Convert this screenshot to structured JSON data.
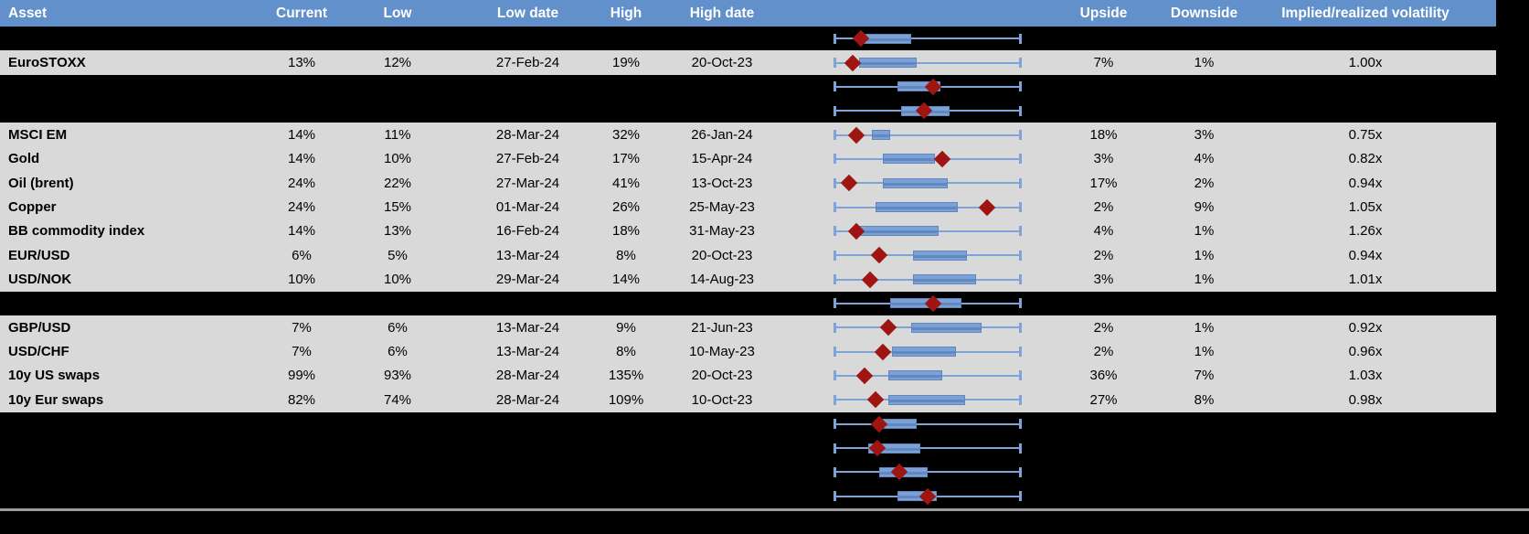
{
  "header": {
    "columns": [
      "Asset",
      "Current",
      "Low",
      "Low date",
      "High",
      "High date",
      "",
      "Upside",
      "Downside",
      "Implied/realized volatility",
      ""
    ]
  },
  "colors": {
    "header_bg": "#6190cb",
    "header_text": "#ffffff",
    "row_bg": "#d9d9d9",
    "hidden_row_bg": "#000000",
    "whisker_blue": "#7fa3d6",
    "box_fill_blue": "#7ba2d6",
    "box_stripe_blue": "#6288bf",
    "marker_red": "#9e1511",
    "bottom_rule_gray": "#9c9c9c"
  },
  "chart_data": {
    "type": "table",
    "legend_position": "none",
    "boxplot_scale": "normalized 0-1 across full min-max whisker span; marker = current value diamond",
    "rows": [
      {
        "hidden": true,
        "boxplot": {
          "whisker": [
            0,
            1
          ],
          "box": [
            0.14,
            0.41
          ],
          "marker": 0.14
        }
      },
      {
        "hidden": false,
        "asset": "EuroSTOXX",
        "current": "13%",
        "low": "12%",
        "low_date": "27-Feb-24",
        "high": "19%",
        "high_date": "20-Oct-23",
        "upside": "7%",
        "downside": "1%",
        "implied_realized": "1.00x",
        "boxplot": {
          "whisker": [
            0,
            1
          ],
          "box": [
            0.13,
            0.44
          ],
          "marker": 0.1
        }
      },
      {
        "hidden": true,
        "boxplot": {
          "whisker": [
            0,
            1
          ],
          "box": [
            0.34,
            0.57
          ],
          "marker": 0.53
        }
      },
      {
        "hidden": true,
        "boxplot": {
          "whisker": [
            0,
            1
          ],
          "box": [
            0.36,
            0.62
          ],
          "marker": 0.48
        }
      },
      {
        "hidden": false,
        "asset": "MSCI EM",
        "current": "14%",
        "low": "11%",
        "low_date": "28-Mar-24",
        "high": "32%",
        "high_date": "26-Jan-24",
        "upside": "18%",
        "downside": "3%",
        "implied_realized": "0.75x",
        "boxplot": {
          "whisker": [
            0,
            1
          ],
          "box": [
            0.2,
            0.3
          ],
          "marker": 0.12
        }
      },
      {
        "hidden": false,
        "asset": "Gold",
        "current": "14%",
        "low": "10%",
        "low_date": "27-Feb-24",
        "high": "17%",
        "high_date": "15-Apr-24",
        "upside": "3%",
        "downside": "4%",
        "implied_realized": "0.82x",
        "boxplot": {
          "whisker": [
            0,
            1
          ],
          "box": [
            0.26,
            0.54
          ],
          "marker": 0.58
        }
      },
      {
        "hidden": false,
        "asset": "Oil (brent)",
        "current": "24%",
        "low": "22%",
        "low_date": "27-Mar-24",
        "high": "41%",
        "high_date": "13-Oct-23",
        "upside": "17%",
        "downside": "2%",
        "implied_realized": "0.94x",
        "boxplot": {
          "whisker": [
            0,
            1
          ],
          "box": [
            0.26,
            0.61
          ],
          "marker": 0.08
        }
      },
      {
        "hidden": false,
        "asset": "Copper",
        "current": "24%",
        "low": "15%",
        "low_date": "01-Mar-24",
        "high": "26%",
        "high_date": "25-May-23",
        "upside": "2%",
        "downside": "9%",
        "implied_realized": "1.05x",
        "boxplot": {
          "whisker": [
            0,
            1
          ],
          "box": [
            0.22,
            0.66
          ],
          "marker": 0.82
        }
      },
      {
        "hidden": false,
        "asset": "BB commodity index",
        "current": "14%",
        "low": "13%",
        "low_date": "16-Feb-24",
        "high": "18%",
        "high_date": "31-May-23",
        "upside": "4%",
        "downside": "1%",
        "implied_realized": "1.26x",
        "boxplot": {
          "whisker": [
            0,
            1
          ],
          "box": [
            0.13,
            0.56
          ],
          "marker": 0.12
        }
      },
      {
        "hidden": false,
        "asset": "EUR/USD",
        "current": "6%",
        "low": "5%",
        "low_date": "13-Mar-24",
        "high": "8%",
        "high_date": "20-Oct-23",
        "upside": "2%",
        "downside": "1%",
        "implied_realized": "0.94x",
        "boxplot": {
          "whisker": [
            0,
            1
          ],
          "box": [
            0.42,
            0.71
          ],
          "marker": 0.24
        }
      },
      {
        "hidden": false,
        "asset": "USD/NOK",
        "current": "10%",
        "low": "10%",
        "low_date": "29-Mar-24",
        "high": "14%",
        "high_date": "14-Aug-23",
        "upside": "3%",
        "downside": "1%",
        "implied_realized": "1.01x",
        "boxplot": {
          "whisker": [
            0,
            1
          ],
          "box": [
            0.42,
            0.76
          ],
          "marker": 0.19
        }
      },
      {
        "hidden": true,
        "boxplot": {
          "whisker": [
            0,
            1
          ],
          "box": [
            0.3,
            0.68
          ],
          "marker": 0.53
        }
      },
      {
        "hidden": false,
        "asset": "GBP/USD",
        "current": "7%",
        "low": "6%",
        "low_date": "13-Mar-24",
        "high": "9%",
        "high_date": "21-Jun-23",
        "upside": "2%",
        "downside": "1%",
        "implied_realized": "0.92x",
        "boxplot": {
          "whisker": [
            0,
            1
          ],
          "box": [
            0.41,
            0.79
          ],
          "marker": 0.29
        }
      },
      {
        "hidden": false,
        "asset": "USD/CHF",
        "current": "7%",
        "low": "6%",
        "low_date": "13-Mar-24",
        "high": "8%",
        "high_date": "10-May-23",
        "upside": "2%",
        "downside": "1%",
        "implied_realized": "0.96x",
        "boxplot": {
          "whisker": [
            0,
            1
          ],
          "box": [
            0.31,
            0.65
          ],
          "marker": 0.26
        }
      },
      {
        "hidden": false,
        "asset": "10y US swaps",
        "current": "99%",
        "low": "93%",
        "low_date": "28-Mar-24",
        "high": "135%",
        "high_date": "20-Oct-23",
        "upside": "36%",
        "downside": "7%",
        "implied_realized": "1.03x",
        "boxplot": {
          "whisker": [
            0,
            1
          ],
          "box": [
            0.29,
            0.58
          ],
          "marker": 0.16
        }
      },
      {
        "hidden": false,
        "asset": "10y Eur swaps",
        "current": "82%",
        "low": "74%",
        "low_date": "28-Mar-24",
        "high": "109%",
        "high_date": "10-Oct-23",
        "upside": "27%",
        "downside": "8%",
        "implied_realized": "0.98x",
        "boxplot": {
          "whisker": [
            0,
            1
          ],
          "box": [
            0.29,
            0.7
          ],
          "marker": 0.22
        }
      },
      {
        "hidden": true,
        "boxplot": {
          "whisker": [
            0,
            1
          ],
          "box": [
            0.25,
            0.44
          ],
          "marker": 0.24
        }
      },
      {
        "hidden": true,
        "boxplot": {
          "whisker": [
            0,
            1
          ],
          "box": [
            0.18,
            0.46
          ],
          "marker": 0.23
        }
      },
      {
        "hidden": true,
        "boxplot": {
          "whisker": [
            0,
            1
          ],
          "box": [
            0.24,
            0.5
          ],
          "marker": 0.35
        }
      },
      {
        "hidden": true,
        "boxplot": {
          "whisker": [
            0,
            1
          ],
          "box": [
            0.34,
            0.55
          ],
          "marker": 0.5
        }
      }
    ]
  }
}
